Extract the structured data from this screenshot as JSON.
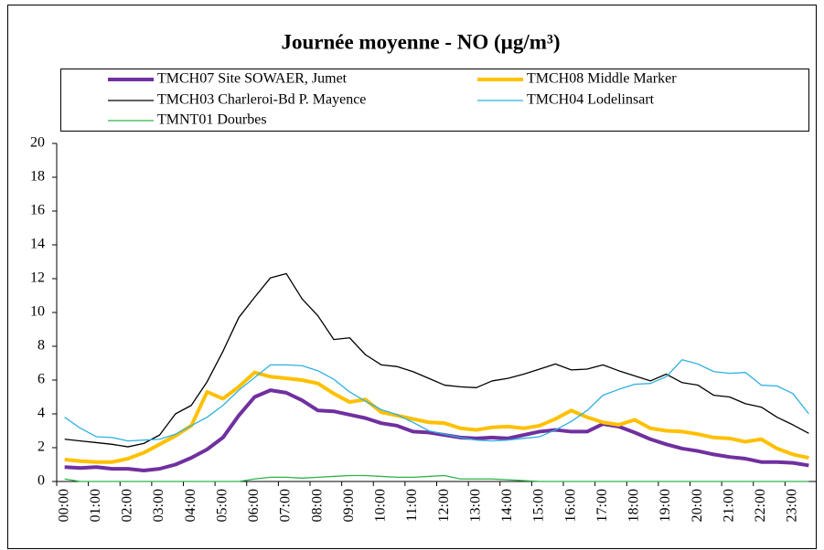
{
  "chart_data": {
    "type": "line",
    "title": "Journée moyenne - NO (µg/m³)",
    "categories": [
      "00:00",
      null,
      "01:00",
      null,
      "02:00",
      null,
      "03:00",
      null,
      "04:00",
      null,
      "05:00",
      null,
      "06:00",
      null,
      "07:00",
      null,
      "08:00",
      null,
      "09:00",
      null,
      "10:00",
      null,
      "11:00",
      null,
      "12:00",
      null,
      "13:00",
      null,
      "14:00",
      null,
      "15:00",
      null,
      "16:00",
      null,
      "17:00",
      null,
      "18:00",
      null,
      "19:00",
      null,
      "20:00",
      null,
      "21:00",
      null,
      "22:00",
      null,
      "23:00",
      null
    ],
    "series": [
      {
        "name": "TMCH07 Site SOWAER, Jumet",
        "color": "#7030a0",
        "width": 4,
        "values": [
          0.85,
          0.8,
          0.85,
          0.75,
          0.75,
          0.65,
          0.75,
          1.0,
          1.4,
          1.9,
          2.6,
          3.9,
          5.0,
          5.4,
          5.25,
          4.8,
          4.2,
          4.15,
          3.95,
          3.75,
          3.45,
          3.3,
          2.95,
          2.9,
          2.75,
          2.6,
          2.55,
          2.6,
          2.55,
          2.75,
          2.95,
          3.05,
          2.95,
          2.95,
          3.4,
          3.25,
          2.9,
          2.5,
          2.2,
          1.95,
          1.8,
          1.6,
          1.45,
          1.35,
          1.15,
          1.15,
          1.1,
          0.95
        ]
      },
      {
        "name": "TMCH08 Middle Marker",
        "color": "#ffc000",
        "width": 4,
        "values": [
          1.3,
          1.2,
          1.15,
          1.15,
          1.35,
          1.7,
          2.2,
          2.7,
          3.3,
          5.3,
          4.9,
          5.6,
          6.45,
          6.2,
          6.1,
          6.0,
          5.8,
          5.2,
          4.7,
          4.85,
          4.1,
          3.9,
          3.7,
          3.5,
          3.45,
          3.15,
          3.05,
          3.2,
          3.25,
          3.15,
          3.3,
          3.7,
          4.2,
          3.8,
          3.5,
          3.35,
          3.65,
          3.15,
          3.0,
          2.95,
          2.8,
          2.6,
          2.55,
          2.35,
          2.5,
          1.95,
          1.6,
          1.4
        ]
      },
      {
        "name": "TMCH03 Charleroi-Bd P. Mayence",
        "color": "#000000",
        "width": 1.3,
        "values": [
          2.5,
          2.4,
          2.3,
          2.2,
          2.05,
          2.25,
          2.75,
          4.0,
          4.5,
          5.9,
          7.7,
          9.7,
          10.9,
          12.05,
          12.3,
          10.8,
          9.8,
          8.4,
          8.5,
          7.5,
          6.9,
          6.8,
          6.5,
          6.1,
          5.7,
          5.6,
          5.55,
          5.95,
          6.1,
          6.35,
          6.65,
          6.95,
          6.6,
          6.65,
          6.9,
          6.55,
          6.25,
          5.95,
          6.35,
          5.85,
          5.7,
          5.1,
          5.0,
          4.6,
          4.4,
          3.8,
          3.35,
          2.85
        ]
      },
      {
        "name": "TMCH04 Lodelinsart",
        "color": "#2eb0e0",
        "width": 1.3,
        "values": [
          3.8,
          3.15,
          2.65,
          2.6,
          2.4,
          2.45,
          2.5,
          2.8,
          3.3,
          3.8,
          4.5,
          5.4,
          6.15,
          6.9,
          6.9,
          6.85,
          6.55,
          6.05,
          5.3,
          4.75,
          4.25,
          3.95,
          3.5,
          3.0,
          2.8,
          2.6,
          2.45,
          2.4,
          2.45,
          2.55,
          2.65,
          3.05,
          3.55,
          4.2,
          5.1,
          5.45,
          5.75,
          5.8,
          6.2,
          7.2,
          6.95,
          6.5,
          6.4,
          6.45,
          5.7,
          5.65,
          5.2,
          4.0
        ]
      },
      {
        "name": "TMNT01 Dourbes",
        "color": "#2db34a",
        "width": 1.3,
        "values": [
          0.15,
          0,
          0,
          0,
          0,
          0,
          0,
          0,
          0,
          0,
          0,
          0,
          0.15,
          0.25,
          0.25,
          0.2,
          0.25,
          0.3,
          0.35,
          0.35,
          0.3,
          0.25,
          0.25,
          0.3,
          0.35,
          0.15,
          0.15,
          0.15,
          0.1,
          0.05,
          0,
          0,
          0,
          0,
          0,
          0,
          0,
          0,
          0,
          0,
          0,
          0,
          0,
          0,
          0,
          0,
          0,
          0
        ]
      }
    ],
    "ylim": [
      0,
      20
    ],
    "yticks": [
      0,
      2,
      4,
      6,
      8,
      10,
      12,
      14,
      16,
      18,
      20
    ],
    "legend": "top",
    "grid": false
  }
}
